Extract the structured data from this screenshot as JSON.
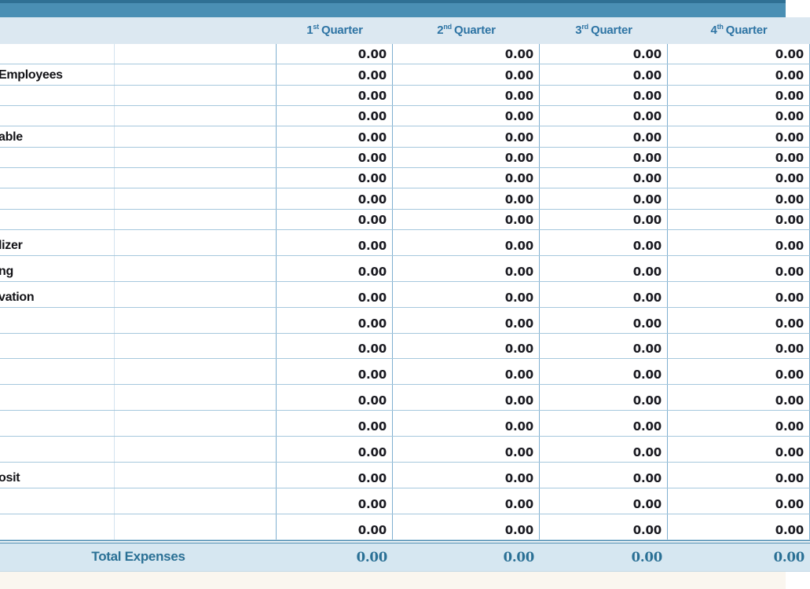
{
  "header": {
    "quarters": [
      {
        "number": "1",
        "ordinal": "st",
        "word": "Quarter"
      },
      {
        "number": "2",
        "ordinal": "nd",
        "word": "Quarter"
      },
      {
        "number": "3",
        "ordinal": "rd",
        "word": "Quarter"
      },
      {
        "number": "4",
        "ordinal": "th",
        "word": "Quarter"
      }
    ]
  },
  "table": {
    "rows": [
      {
        "label": "",
        "values": [
          "0.00",
          "0.00",
          "0.00",
          "0.00"
        ]
      },
      {
        "label": "Employees",
        "values": [
          "0.00",
          "0.00",
          "0.00",
          "0.00"
        ]
      },
      {
        "label": "",
        "values": [
          "0.00",
          "0.00",
          "0.00",
          "0.00"
        ]
      },
      {
        "label": "",
        "values": [
          "0.00",
          "0.00",
          "0.00",
          "0.00"
        ]
      },
      {
        "label": "able",
        "values": [
          "0.00",
          "0.00",
          "0.00",
          "0.00"
        ]
      },
      {
        "label": "",
        "values": [
          "0.00",
          "0.00",
          "0.00",
          "0.00"
        ]
      },
      {
        "label": "",
        "values": [
          "0.00",
          "0.00",
          "0.00",
          "0.00"
        ]
      },
      {
        "label": "",
        "values": [
          "0.00",
          "0.00",
          "0.00",
          "0.00"
        ]
      },
      {
        "label": "",
        "values": [
          "0.00",
          "0.00",
          "0.00",
          "0.00"
        ]
      },
      {
        "label": "lizer",
        "values": [
          "0.00",
          "0.00",
          "0.00",
          "0.00"
        ]
      },
      {
        "label": "ng",
        "values": [
          "0.00",
          "0.00",
          "0.00",
          "0.00"
        ]
      },
      {
        "label": "vation",
        "values": [
          "0.00",
          "0.00",
          "0.00",
          "0.00"
        ]
      },
      {
        "label": "",
        "values": [
          "0.00",
          "0.00",
          "0.00",
          "0.00"
        ]
      },
      {
        "label": "",
        "values": [
          "0.00",
          "0.00",
          "0.00",
          "0.00"
        ]
      },
      {
        "label": "",
        "values": [
          "0.00",
          "0.00",
          "0.00",
          "0.00"
        ]
      },
      {
        "label": "",
        "values": [
          "0.00",
          "0.00",
          "0.00",
          "0.00"
        ]
      },
      {
        "label": "",
        "values": [
          "0.00",
          "0.00",
          "0.00",
          "0.00"
        ]
      },
      {
        "label": "",
        "values": [
          "0.00",
          "0.00",
          "0.00",
          "0.00"
        ]
      },
      {
        "label": "osit",
        "values": [
          "0.00",
          "0.00",
          "0.00",
          "0.00"
        ]
      },
      {
        "label": "",
        "values": [
          "0.00",
          "0.00",
          "0.00",
          "0.00"
        ]
      },
      {
        "label": "",
        "values": [
          "0.00",
          "0.00",
          "0.00",
          "0.00"
        ]
      }
    ]
  },
  "total": {
    "label": "Total Expenses",
    "values": [
      "0.00",
      "0.00",
      "0.00",
      "0.00"
    ]
  },
  "colors": {
    "top_bar": "#4a8fb4",
    "top_bar_edge": "#2f7094",
    "header_bg": "#dce8f1",
    "header_text": "#2e74a4",
    "grid_h": "#a6c8dd",
    "grid_v": "#7fafd0",
    "double_line": "#4d8bb0",
    "total_bg": "#d6e7f1",
    "total_text": "#2a7095",
    "value_text": "#191920",
    "label_text": "#121216",
    "page_strip": "#faf6ef"
  }
}
